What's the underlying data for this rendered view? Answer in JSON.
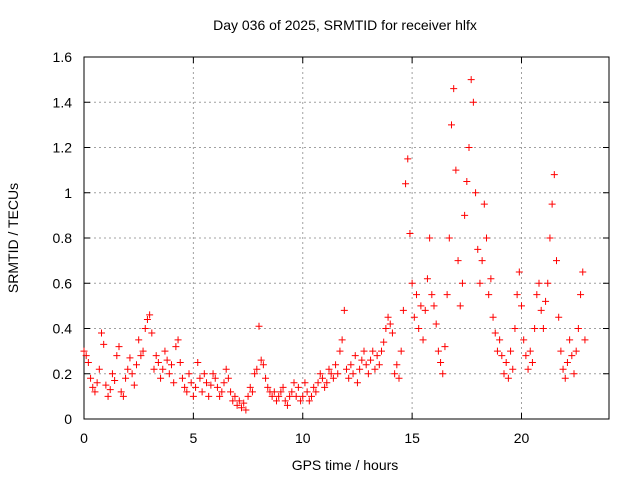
{
  "chart_data": {
    "type": "scatter",
    "title": "Day 036 of 2025, SRMTID for receiver hlfx",
    "xlabel": "GPS time / hours",
    "ylabel": "SRMTID / TECUs",
    "xlim": [
      0,
      24
    ],
    "ylim": [
      0,
      1.6
    ],
    "xticks": [
      0,
      5,
      10,
      15,
      20
    ],
    "xtick_labels": [
      "0",
      "5",
      "10",
      "15",
      "20"
    ],
    "yticks": [
      0,
      0.2,
      0.4,
      0.6,
      0.8,
      1.0,
      1.2,
      1.4,
      1.6
    ],
    "ytick_labels": [
      "0",
      "0.2",
      "0.4",
      "0.6",
      "0.8",
      "1",
      "1.2",
      "1.4",
      "1.6"
    ],
    "grid": true,
    "marker": "+",
    "color": "#ff0000",
    "series": [
      {
        "name": "SRMTID",
        "points": [
          [
            0.0,
            0.3
          ],
          [
            0.1,
            0.28
          ],
          [
            0.2,
            0.25
          ],
          [
            0.3,
            0.18
          ],
          [
            0.4,
            0.14
          ],
          [
            0.5,
            0.12
          ],
          [
            0.6,
            0.16
          ],
          [
            0.7,
            0.22
          ],
          [
            0.8,
            0.38
          ],
          [
            0.9,
            0.33
          ],
          [
            1.0,
            0.15
          ],
          [
            1.1,
            0.1
          ],
          [
            1.2,
            0.13
          ],
          [
            1.3,
            0.2
          ],
          [
            1.4,
            0.17
          ],
          [
            1.5,
            0.28
          ],
          [
            1.6,
            0.32
          ],
          [
            1.7,
            0.12
          ],
          [
            1.8,
            0.1
          ],
          [
            1.9,
            0.18
          ],
          [
            2.0,
            0.22
          ],
          [
            2.1,
            0.27
          ],
          [
            2.2,
            0.2
          ],
          [
            2.3,
            0.15
          ],
          [
            2.4,
            0.24
          ],
          [
            2.5,
            0.35
          ],
          [
            2.6,
            0.28
          ],
          [
            2.7,
            0.3
          ],
          [
            2.8,
            0.4
          ],
          [
            2.9,
            0.44
          ],
          [
            3.0,
            0.46
          ],
          [
            3.1,
            0.38
          ],
          [
            3.2,
            0.22
          ],
          [
            3.3,
            0.28
          ],
          [
            3.4,
            0.25
          ],
          [
            3.5,
            0.18
          ],
          [
            3.6,
            0.22
          ],
          [
            3.7,
            0.3
          ],
          [
            3.8,
            0.26
          ],
          [
            3.9,
            0.2
          ],
          [
            4.0,
            0.24
          ],
          [
            4.1,
            0.16
          ],
          [
            4.2,
            0.32
          ],
          [
            4.3,
            0.35
          ],
          [
            4.4,
            0.25
          ],
          [
            4.5,
            0.18
          ],
          [
            4.6,
            0.14
          ],
          [
            4.7,
            0.12
          ],
          [
            4.8,
            0.2
          ],
          [
            4.9,
            0.16
          ],
          [
            5.0,
            0.1
          ],
          [
            5.1,
            0.14
          ],
          [
            5.2,
            0.25
          ],
          [
            5.3,
            0.18
          ],
          [
            5.4,
            0.12
          ],
          [
            5.5,
            0.2
          ],
          [
            5.6,
            0.16
          ],
          [
            5.7,
            0.1
          ],
          [
            5.8,
            0.15
          ],
          [
            5.9,
            0.2
          ],
          [
            6.0,
            0.18
          ],
          [
            6.1,
            0.14
          ],
          [
            6.2,
            0.1
          ],
          [
            6.3,
            0.12
          ],
          [
            6.4,
            0.16
          ],
          [
            6.5,
            0.22
          ],
          [
            6.6,
            0.18
          ],
          [
            6.7,
            0.12
          ],
          [
            6.8,
            0.08
          ],
          [
            6.9,
            0.1
          ],
          [
            7.0,
            0.06
          ],
          [
            7.1,
            0.08
          ],
          [
            7.2,
            0.05
          ],
          [
            7.3,
            0.07
          ],
          [
            7.4,
            0.04
          ],
          [
            7.5,
            0.1
          ],
          [
            7.6,
            0.14
          ],
          [
            7.7,
            0.12
          ],
          [
            7.8,
            0.2
          ],
          [
            7.9,
            0.22
          ],
          [
            8.0,
            0.41
          ],
          [
            8.1,
            0.26
          ],
          [
            8.2,
            0.24
          ],
          [
            8.3,
            0.18
          ],
          [
            8.4,
            0.14
          ],
          [
            8.5,
            0.12
          ],
          [
            8.6,
            0.1
          ],
          [
            8.7,
            0.12
          ],
          [
            8.8,
            0.08
          ],
          [
            8.9,
            0.1
          ],
          [
            9.0,
            0.12
          ],
          [
            9.1,
            0.14
          ],
          [
            9.2,
            0.08
          ],
          [
            9.3,
            0.06
          ],
          [
            9.4,
            0.1
          ],
          [
            9.5,
            0.12
          ],
          [
            9.6,
            0.16
          ],
          [
            9.7,
            0.1
          ],
          [
            9.8,
            0.14
          ],
          [
            9.9,
            0.08
          ],
          [
            10.0,
            0.1
          ],
          [
            10.1,
            0.16
          ],
          [
            10.2,
            0.12
          ],
          [
            10.3,
            0.08
          ],
          [
            10.4,
            0.1
          ],
          [
            10.5,
            0.14
          ],
          [
            10.6,
            0.12
          ],
          [
            10.7,
            0.16
          ],
          [
            10.8,
            0.2
          ],
          [
            10.9,
            0.18
          ],
          [
            11.0,
            0.14
          ],
          [
            11.1,
            0.16
          ],
          [
            11.2,
            0.22
          ],
          [
            11.3,
            0.2
          ],
          [
            11.4,
            0.18
          ],
          [
            11.5,
            0.24
          ],
          [
            11.6,
            0.2
          ],
          [
            11.7,
            0.3
          ],
          [
            11.8,
            0.35
          ],
          [
            11.9,
            0.48
          ],
          [
            12.0,
            0.22
          ],
          [
            12.1,
            0.18
          ],
          [
            12.2,
            0.24
          ],
          [
            12.3,
            0.2
          ],
          [
            12.4,
            0.28
          ],
          [
            12.5,
            0.16
          ],
          [
            12.6,
            0.22
          ],
          [
            12.7,
            0.26
          ],
          [
            12.8,
            0.3
          ],
          [
            12.9,
            0.24
          ],
          [
            13.0,
            0.2
          ],
          [
            13.1,
            0.26
          ],
          [
            13.2,
            0.3
          ],
          [
            13.3,
            0.22
          ],
          [
            13.4,
            0.28
          ],
          [
            13.5,
            0.24
          ],
          [
            13.6,
            0.3
          ],
          [
            13.7,
            0.34
          ],
          [
            13.8,
            0.4
          ],
          [
            13.9,
            0.45
          ],
          [
            14.0,
            0.42
          ],
          [
            14.1,
            0.38
          ],
          [
            14.2,
            0.2
          ],
          [
            14.3,
            0.24
          ],
          [
            14.4,
            0.18
          ],
          [
            14.5,
            0.3
          ],
          [
            14.6,
            0.48
          ],
          [
            14.7,
            1.04
          ],
          [
            14.8,
            1.15
          ],
          [
            14.9,
            0.82
          ],
          [
            15.0,
            0.6
          ],
          [
            15.1,
            0.45
          ],
          [
            15.2,
            0.55
          ],
          [
            15.3,
            0.4
          ],
          [
            15.4,
            0.5
          ],
          [
            15.5,
            0.35
          ],
          [
            15.6,
            0.48
          ],
          [
            15.7,
            0.62
          ],
          [
            15.8,
            0.8
          ],
          [
            15.9,
            0.55
          ],
          [
            16.0,
            0.5
          ],
          [
            16.1,
            0.42
          ],
          [
            16.2,
            0.3
          ],
          [
            16.3,
            0.25
          ],
          [
            16.4,
            0.2
          ],
          [
            16.5,
            0.32
          ],
          [
            16.6,
            0.55
          ],
          [
            16.7,
            0.8
          ],
          [
            16.8,
            1.3
          ],
          [
            16.9,
            1.46
          ],
          [
            17.0,
            1.1
          ],
          [
            17.1,
            0.7
          ],
          [
            17.2,
            0.5
          ],
          [
            17.3,
            0.6
          ],
          [
            17.4,
            0.9
          ],
          [
            17.5,
            1.05
          ],
          [
            17.6,
            1.2
          ],
          [
            17.7,
            1.5
          ],
          [
            17.8,
            1.4
          ],
          [
            17.9,
            1.0
          ],
          [
            18.0,
            0.75
          ],
          [
            18.1,
            0.6
          ],
          [
            18.2,
            0.7
          ],
          [
            18.3,
            0.95
          ],
          [
            18.4,
            0.8
          ],
          [
            18.5,
            0.55
          ],
          [
            18.6,
            0.62
          ],
          [
            18.7,
            0.45
          ],
          [
            18.8,
            0.38
          ],
          [
            18.9,
            0.3
          ],
          [
            19.0,
            0.35
          ],
          [
            19.1,
            0.28
          ],
          [
            19.2,
            0.2
          ],
          [
            19.3,
            0.25
          ],
          [
            19.4,
            0.18
          ],
          [
            19.5,
            0.3
          ],
          [
            19.6,
            0.22
          ],
          [
            19.7,
            0.4
          ],
          [
            19.8,
            0.55
          ],
          [
            19.9,
            0.65
          ],
          [
            20.0,
            0.5
          ],
          [
            20.1,
            0.35
          ],
          [
            20.2,
            0.28
          ],
          [
            20.3,
            0.22
          ],
          [
            20.4,
            0.3
          ],
          [
            20.5,
            0.25
          ],
          [
            20.6,
            0.4
          ],
          [
            20.7,
            0.55
          ],
          [
            20.8,
            0.6
          ],
          [
            20.9,
            0.48
          ],
          [
            21.0,
            0.4
          ],
          [
            21.1,
            0.52
          ],
          [
            21.2,
            0.6
          ],
          [
            21.3,
            0.8
          ],
          [
            21.4,
            0.95
          ],
          [
            21.5,
            1.08
          ],
          [
            21.6,
            0.7
          ],
          [
            21.7,
            0.45
          ],
          [
            21.8,
            0.3
          ],
          [
            21.9,
            0.22
          ],
          [
            22.0,
            0.18
          ],
          [
            22.1,
            0.25
          ],
          [
            22.2,
            0.35
          ],
          [
            22.3,
            0.28
          ],
          [
            22.4,
            0.2
          ],
          [
            22.5,
            0.3
          ],
          [
            22.6,
            0.4
          ],
          [
            22.7,
            0.55
          ],
          [
            22.8,
            0.65
          ],
          [
            22.9,
            0.35
          ]
        ]
      }
    ]
  }
}
